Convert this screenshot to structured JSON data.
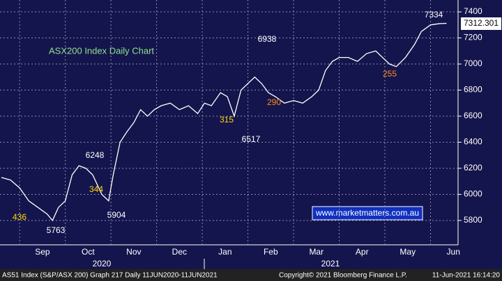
{
  "chart_data": {
    "type": "line",
    "title": "ASX200 Index Daily Chart",
    "x": [
      8.6,
      8.8,
      9.0,
      9.2,
      9.4,
      9.6,
      9.72,
      9.85,
      10.0,
      10.15,
      10.3,
      10.45,
      10.6,
      10.8,
      10.95,
      11.05,
      11.2,
      11.35,
      11.5,
      11.65,
      11.8,
      11.95,
      12.1,
      12.3,
      12.5,
      12.7,
      12.9,
      13.05,
      13.2,
      13.4,
      13.55,
      13.7,
      13.85,
      14.0,
      14.15,
      14.3,
      14.45,
      14.6,
      14.8,
      15.0,
      15.2,
      15.4,
      15.55,
      15.7,
      15.85,
      16.0,
      16.2,
      16.4,
      16.6,
      16.8,
      16.95,
      17.1,
      17.25,
      17.45,
      17.65,
      17.8,
      18.0,
      18.2,
      18.35
    ],
    "series": [
      {
        "name": "ASX200",
        "color": "#ffffff",
        "values": [
          6130,
          6110,
          6050,
          5950,
          5900,
          5850,
          5800,
          5900,
          5950,
          6150,
          6220,
          6200,
          6150,
          6000,
          5950,
          6150,
          6400,
          6480,
          6550,
          6650,
          6600,
          6650,
          6680,
          6700,
          6650,
          6680,
          6620,
          6700,
          6680,
          6780,
          6750,
          6600,
          6800,
          6850,
          6900,
          6850,
          6780,
          6750,
          6700,
          6720,
          6700,
          6750,
          6800,
          6950,
          7020,
          7050,
          7050,
          7020,
          7080,
          7100,
          7050,
          7000,
          6980,
          7050,
          7150,
          7250,
          7300,
          7310,
          7312
        ]
      }
    ],
    "xlim": [
      8.57,
      18.55
    ],
    "xticks": [
      {
        "value": 9.5,
        "label": "Sep"
      },
      {
        "value": 10.5,
        "label": "Oct"
      },
      {
        "value": 11.5,
        "label": "Nov"
      },
      {
        "value": 12.5,
        "label": "Dec"
      },
      {
        "value": 13.5,
        "label": "Jan"
      },
      {
        "value": 14.5,
        "label": "Feb"
      },
      {
        "value": 15.5,
        "label": "Mar"
      },
      {
        "value": 16.5,
        "label": "Apr"
      },
      {
        "value": 17.5,
        "label": "May"
      },
      {
        "value": 18.5,
        "label": "Jun"
      }
    ],
    "years": [
      "2020",
      "2021"
    ],
    "ylim": [
      5613,
      7491
    ],
    "yticks": [
      5800,
      6000,
      6200,
      6400,
      6600,
      6800,
      7000,
      7200,
      7400
    ],
    "grid": true,
    "last_value": "7312.301",
    "annotations": [
      "7334",
      "6938",
      "6248",
      "6517",
      "5763",
      "5904",
      "436",
      "344",
      "315",
      "290",
      "255"
    ],
    "watermark": "www.marketmatters.com.au",
    "footer": [
      "AS51 Index (S&P/ASX 200) Graph 217  Daily 11JUN2020-11JUN2021",
      "Copyright© 2021 Bloomberg Finance L.P.",
      "11-Jun-2021 16:14:20"
    ]
  }
}
